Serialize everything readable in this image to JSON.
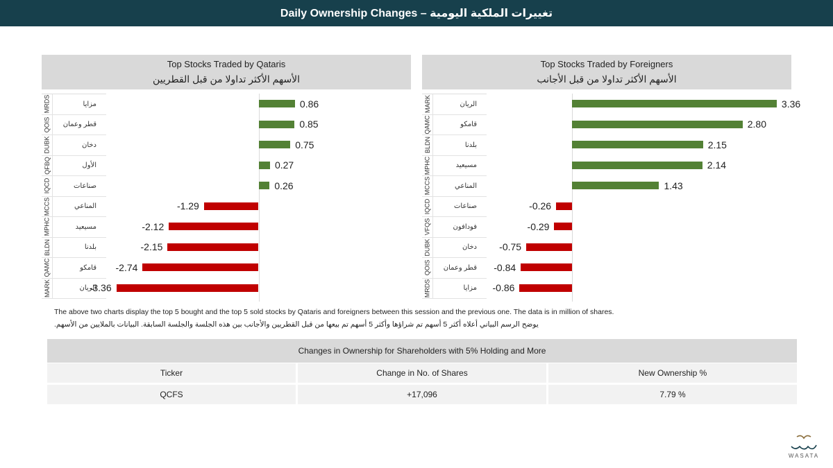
{
  "header": {
    "title": "Daily Ownership Changes – تغييرات الملكية اليومية"
  },
  "chart_data": [
    {
      "type": "bar",
      "orientation": "horizontal",
      "title": "Top Stocks Traded by Qataris",
      "subtitle": "الأسهم الأكثر تداولا من قبل القطريين",
      "tickers": [
        "MRDS",
        "QOIS",
        "DUBK",
        "QFBQ",
        "IQCD",
        "MCCS",
        "MPHC",
        "BLDN",
        "QAMC",
        "MARK"
      ],
      "categories": [
        "مزايا",
        "قطر وعمان",
        "دخان",
        "الأول",
        "صناعات",
        "المناعي",
        "مسيعيد",
        "بلدنا",
        "قامكو",
        "الريان"
      ],
      "values": [
        0.86,
        0.85,
        0.75,
        0.27,
        0.26,
        -1.29,
        -2.12,
        -2.15,
        -2.74,
        -3.36
      ],
      "value_labels": [
        "0.86",
        "0.85",
        "0.75",
        "0.27",
        "0.26",
        "-1.29",
        "-2.12",
        "-2.15",
        "-2.74",
        "-3.36"
      ],
      "xlim": [
        -3.6,
        3.6
      ],
      "colors": {
        "positive": "#538135",
        "negative": "#c00000"
      }
    },
    {
      "type": "bar",
      "orientation": "horizontal",
      "title": "Top Stocks Traded by Foreigners",
      "subtitle": "الأسهم الأكثر تداولا من قبل الأجانب",
      "tickers": [
        "MARK",
        "QAMC",
        "BLDN",
        "MPHC",
        "MCCS",
        "IQCD",
        "VFQS",
        "DUBK",
        "QOIS",
        "MRDS"
      ],
      "categories": [
        "الريان",
        "قامكو",
        "بلدنا",
        "مسيعيد",
        "المناعي",
        "صناعات",
        "فودافون",
        "دخان",
        "قطر وعمان",
        "مزايا"
      ],
      "values": [
        3.36,
        2.8,
        2.15,
        2.14,
        1.43,
        -0.26,
        -0.29,
        -0.75,
        -0.84,
        -0.86
      ],
      "value_labels": [
        "3.36",
        "2.80",
        "2.15",
        "2.14",
        "1.43",
        "-0.26",
        "-0.29",
        "-0.75",
        "-0.84",
        "-0.86"
      ],
      "xlim": [
        -1.4,
        3.6
      ],
      "colors": {
        "positive": "#538135",
        "negative": "#c00000"
      }
    }
  ],
  "notes": {
    "en": "The above two charts display the top 5 bought and the top 5 sold stocks by Qataris and foreigners between this session and the previous one. The data is in million of shares.",
    "ar": "يوضح الرسم البياني أعلاه أكثر 5 أسهم تم شراؤها وأكثر 5 أسهم تم بيعها من قبل القطريين والأجانب بين هذه الجلسة والجلسة السابقة. البيانات بالملايين من الأسهم."
  },
  "ownership_table": {
    "title": "Changes in Ownership for Shareholders with 5% Holding and More",
    "columns": [
      "Ticker",
      "Change in No. of Shares",
      "New Ownership %"
    ],
    "rows": [
      [
        "QCFS",
        "+17,096",
        "7.79 %"
      ]
    ]
  },
  "logo": {
    "brand": "WASATA"
  }
}
